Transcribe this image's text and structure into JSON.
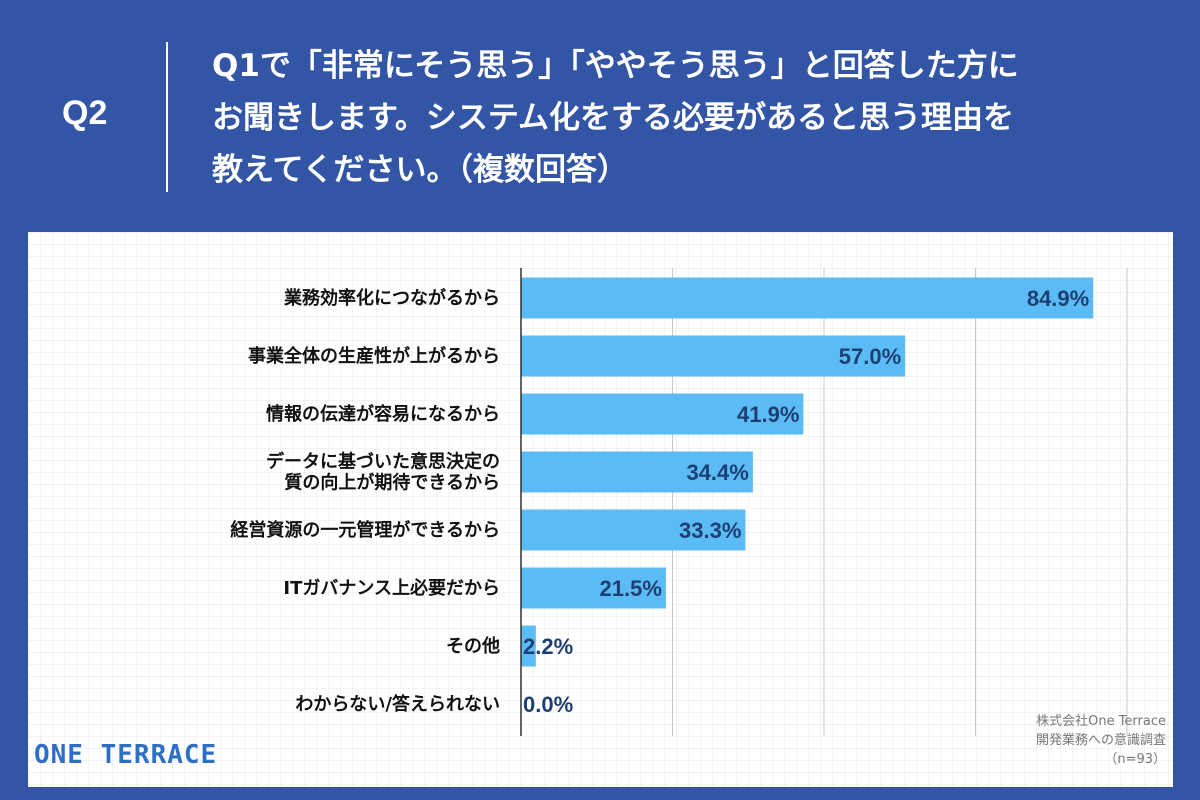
{
  "header": {
    "q_number": "Q2",
    "question": "Q1で「非常にそう思う」「ややそう思う」と回答した方に\nお聞きします。システム化をする必要があると思う理由を\n教えてください。（複数回答）"
  },
  "footer": {
    "logo": "ONE TERRACE",
    "source_lines": [
      "株式会社One Terrace",
      "開発業務への意識調査",
      "（n=93）"
    ]
  },
  "colors": {
    "background": "#3355a6",
    "bar": "#5bbcf5",
    "value_text": "#1d3f73",
    "label_text": "#111111",
    "logo": "#2d6fc4"
  },
  "chart_data": {
    "type": "bar",
    "orientation": "horizontal",
    "categories": [
      "業務効率化につながるから",
      "事業全体の生産性が上がるから",
      "情報の伝達が容易になるから",
      "データに基づいた意思決定の\n質の向上が期待できるから",
      "経営資源の一元管理ができるから",
      "ITガバナンス上必要だから",
      "その他",
      "わからない/答えられない"
    ],
    "values": [
      84.9,
      57.0,
      41.9,
      34.4,
      33.3,
      21.5,
      2.2,
      0.0
    ],
    "value_labels": [
      "84.9%",
      "57.0%",
      "41.9%",
      "34.4%",
      "33.3%",
      "21.5%",
      "2.2%",
      "0.0%"
    ],
    "xlim": [
      0,
      90
    ],
    "grid": "vertical",
    "legend": "none"
  }
}
